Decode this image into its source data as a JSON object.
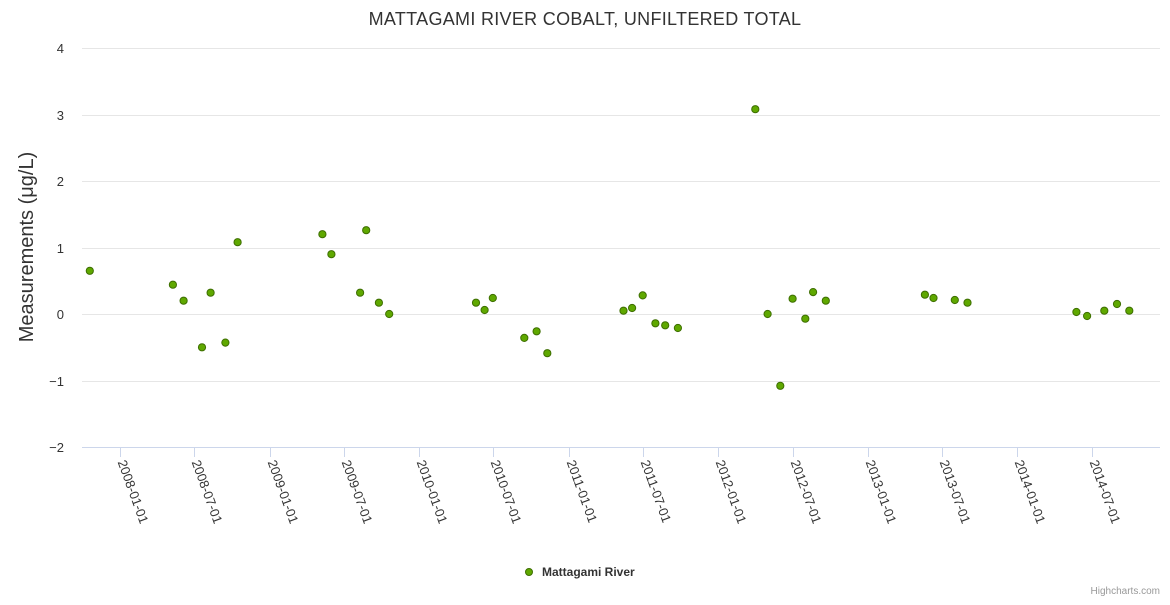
{
  "chart_data": {
    "type": "scatter",
    "title": "MATTAGAMI RIVER COBALT, UNFILTERED TOTAL",
    "xlabel": "",
    "ylabel": "Measurements (μg/L)",
    "ylim": [
      -2,
      4
    ],
    "yticks": [
      4,
      3,
      2,
      1,
      0,
      -1,
      -2
    ],
    "ytick_labels": [
      "4",
      "3",
      "2",
      "1",
      "0",
      "−1",
      "−2"
    ],
    "xlim": [
      "2007-10-01",
      "2014-12-15"
    ],
    "xticks": [
      "2008-01-01",
      "2008-07-01",
      "2009-01-01",
      "2009-07-01",
      "2010-01-01",
      "2010-07-01",
      "2011-01-01",
      "2011-07-01",
      "2012-01-01",
      "2012-07-01",
      "2013-01-01",
      "2013-07-01",
      "2014-01-01",
      "2014-07-01"
    ],
    "grid": true,
    "legend_position": "bottom-center",
    "series": [
      {
        "name": "Mattagami River",
        "color": "#5fa800",
        "points": [
          {
            "x": "2007-10-20",
            "y": 0.65
          },
          {
            "x": "2008-05-10",
            "y": 0.44
          },
          {
            "x": "2008-06-05",
            "y": 0.2
          },
          {
            "x": "2008-07-20",
            "y": -0.5
          },
          {
            "x": "2008-08-10",
            "y": 0.32
          },
          {
            "x": "2008-09-15",
            "y": -0.43
          },
          {
            "x": "2008-10-15",
            "y": 1.08
          },
          {
            "x": "2009-05-10",
            "y": 1.2
          },
          {
            "x": "2009-06-01",
            "y": 0.9
          },
          {
            "x": "2009-08-10",
            "y": 0.32
          },
          {
            "x": "2009-08-25",
            "y": 1.26
          },
          {
            "x": "2009-09-25",
            "y": 0.17
          },
          {
            "x": "2009-10-20",
            "y": 0.0
          },
          {
            "x": "2010-05-20",
            "y": 0.17
          },
          {
            "x": "2010-06-10",
            "y": 0.06
          },
          {
            "x": "2010-06-30",
            "y": 0.24
          },
          {
            "x": "2010-09-15",
            "y": -0.36
          },
          {
            "x": "2010-10-15",
            "y": -0.26
          },
          {
            "x": "2010-11-10",
            "y": -0.59
          },
          {
            "x": "2011-05-15",
            "y": 0.05
          },
          {
            "x": "2011-06-05",
            "y": 0.09
          },
          {
            "x": "2011-07-01",
            "y": 0.28
          },
          {
            "x": "2011-08-01",
            "y": -0.14
          },
          {
            "x": "2011-08-25",
            "y": -0.17
          },
          {
            "x": "2011-09-25",
            "y": -0.21
          },
          {
            "x": "2012-04-01",
            "y": 3.08
          },
          {
            "x": "2012-05-01",
            "y": 0.0
          },
          {
            "x": "2012-06-01",
            "y": -1.08
          },
          {
            "x": "2012-07-01",
            "y": 0.23
          },
          {
            "x": "2012-08-01",
            "y": -0.07
          },
          {
            "x": "2012-08-20",
            "y": 0.33
          },
          {
            "x": "2012-09-20",
            "y": 0.2
          },
          {
            "x": "2013-05-20",
            "y": 0.29
          },
          {
            "x": "2013-06-10",
            "y": 0.24
          },
          {
            "x": "2013-08-01",
            "y": 0.21
          },
          {
            "x": "2013-09-01",
            "y": 0.17
          },
          {
            "x": "2014-05-25",
            "y": 0.03
          },
          {
            "x": "2014-06-20",
            "y": -0.03
          },
          {
            "x": "2014-08-01",
            "y": 0.05
          },
          {
            "x": "2014-09-01",
            "y": 0.15
          },
          {
            "x": "2014-10-01",
            "y": 0.05
          }
        ]
      }
    ]
  },
  "credit": "Highcharts.com"
}
